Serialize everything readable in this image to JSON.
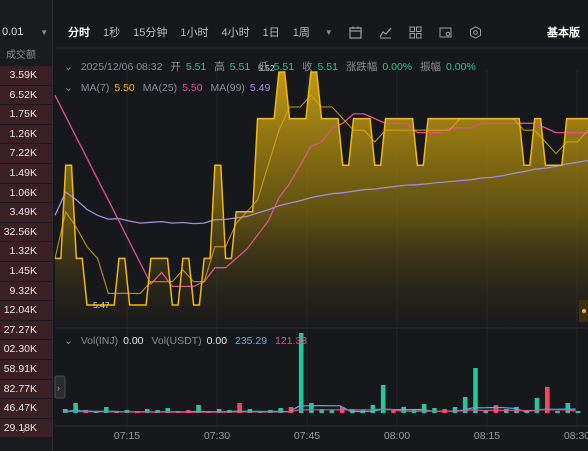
{
  "left_panel": {
    "top_value": "0.01",
    "header": "成交额",
    "rows": [
      "3.59K",
      "6.52K",
      "1.75K",
      "1.26K",
      "7.22K",
      "1.49K",
      "1.06K",
      "3.49K",
      "32.56K",
      "1.32K",
      "1.45K",
      "9.32K",
      "12.04K",
      "27.27K",
      "02.30K",
      "58.91K",
      "82.77K",
      "46.47K",
      "29.18K"
    ]
  },
  "toolbar": {
    "tabs": [
      "分时",
      "1秒",
      "15分钟",
      "1小时",
      "4小时",
      "1日",
      "1周"
    ],
    "active_tab": "分时",
    "basic_label": "基本版"
  },
  "ohlc": {
    "date": "2025/12/06 08:32",
    "open_label": "开",
    "open": "5.51",
    "high_label": "高",
    "high": "5.51",
    "low_label": "低",
    "low": "5.51",
    "close_label": "收",
    "close": "5.51",
    "change_label": "涨跌幅",
    "change": "0.00%",
    "amplitude_label": "振幅",
    "amplitude": "0.00%"
  },
  "ma": {
    "ma7_label": "MA(7)",
    "ma7": "5.50",
    "ma25_label": "MA(25)",
    "ma25": "5.50",
    "ma99_label": "MA(99)",
    "ma99": "5.49"
  },
  "volume": {
    "vol_inj_label": "Vol(INJ)",
    "vol_inj": "0.00",
    "vol_usdt_label": "Vol(USDT)",
    "vol_usdt": "0.00",
    "v1": "235.29",
    "v2": "121.33"
  },
  "chart_labels": {
    "high_mark": "5.52",
    "low_mark": "5.47"
  },
  "x_axis": [
    "07:15",
    "07:30",
    "07:45",
    "08:00",
    "08:15",
    "08:30"
  ],
  "colors": {
    "price_line": "#f0b90b",
    "ma7": "#f0b90b",
    "ma25": "#e0508a",
    "ma99": "#a48bd8",
    "up": "#20c997",
    "down": "#f6465d",
    "vol_ma_a": "#4fb3e8",
    "vol_ma_b": "#e0508a"
  },
  "chart_data": {
    "type": "area",
    "price_series": [
      5.48,
      5.5,
      5.48,
      5.47,
      5.47,
      5.47,
      5.48,
      5.47,
      5.47,
      5.48,
      5.48,
      5.47,
      5.48,
      5.47,
      5.48,
      5.5,
      5.48,
      5.49,
      5.49,
      5.51,
      5.51,
      5.52,
      5.51,
      5.51,
      5.52,
      5.51,
      5.51,
      5.5,
      5.51,
      5.51,
      5.5,
      5.51,
      5.51,
      5.51,
      5.5,
      5.51,
      5.51,
      5.51,
      5.51,
      5.51,
      5.51,
      5.51,
      5.51,
      5.51,
      5.5,
      5.51,
      5.5,
      5.5,
      5.51,
      5.51,
      5.51
    ],
    "x_ticks": [
      "07:15",
      "07:30",
      "07:45",
      "08:00",
      "08:15",
      "08:30"
    ]
  }
}
